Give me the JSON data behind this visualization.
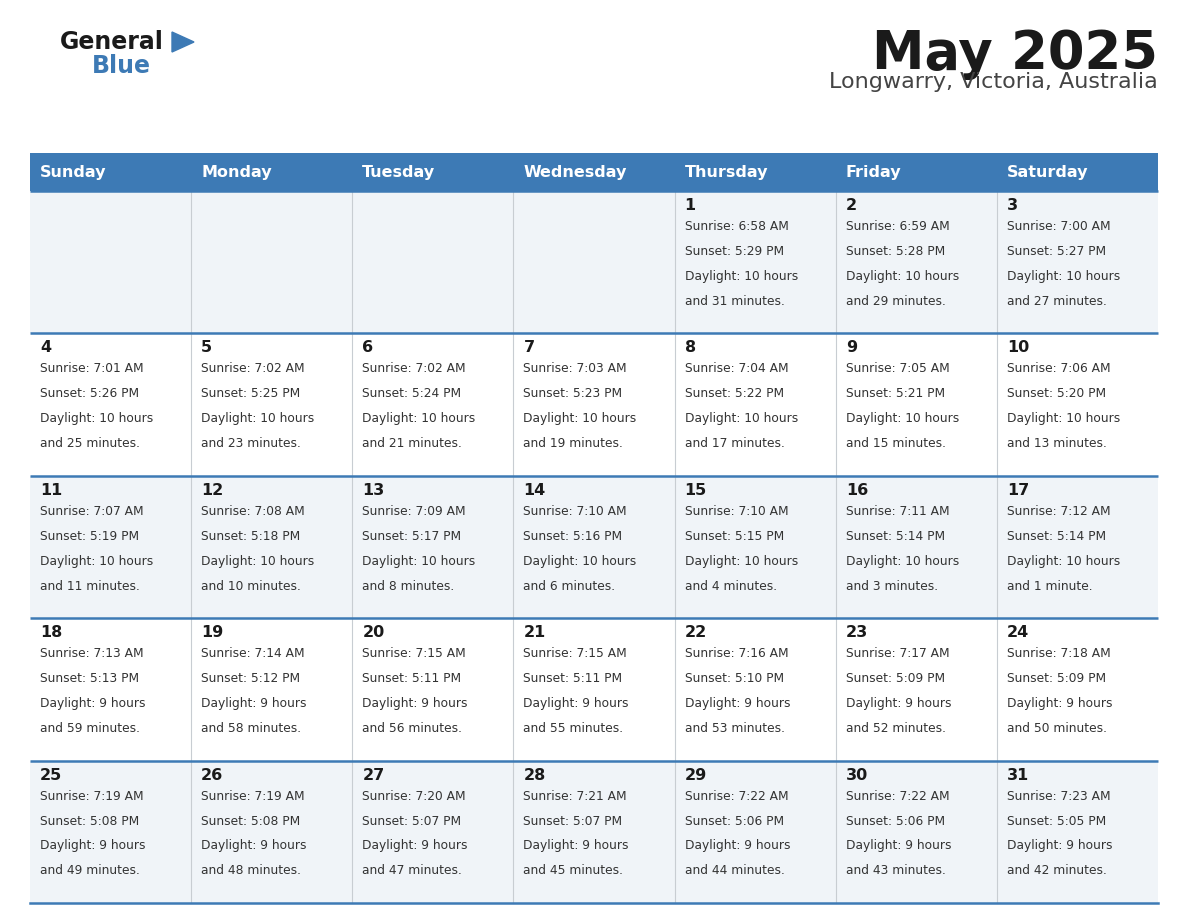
{
  "title": "May 2025",
  "subtitle": "Longwarry, Victoria, Australia",
  "header_bg": "#3d7ab5",
  "header_text": "#ffffff",
  "cell_bg_odd": "#f0f4f8",
  "cell_bg_even": "#ffffff",
  "day_names": [
    "Sunday",
    "Monday",
    "Tuesday",
    "Wednesday",
    "Thursday",
    "Friday",
    "Saturday"
  ],
  "logo_text1": "General",
  "logo_text2": "Blue",
  "days": [
    {
      "day": 1,
      "col": 4,
      "row": 0,
      "sunrise": "6:58 AM",
      "sunset": "5:29 PM",
      "daylight_line1": "Daylight: 10 hours",
      "daylight_line2": "and 31 minutes."
    },
    {
      "day": 2,
      "col": 5,
      "row": 0,
      "sunrise": "6:59 AM",
      "sunset": "5:28 PM",
      "daylight_line1": "Daylight: 10 hours",
      "daylight_line2": "and 29 minutes."
    },
    {
      "day": 3,
      "col": 6,
      "row": 0,
      "sunrise": "7:00 AM",
      "sunset": "5:27 PM",
      "daylight_line1": "Daylight: 10 hours",
      "daylight_line2": "and 27 minutes."
    },
    {
      "day": 4,
      "col": 0,
      "row": 1,
      "sunrise": "7:01 AM",
      "sunset": "5:26 PM",
      "daylight_line1": "Daylight: 10 hours",
      "daylight_line2": "and 25 minutes."
    },
    {
      "day": 5,
      "col": 1,
      "row": 1,
      "sunrise": "7:02 AM",
      "sunset": "5:25 PM",
      "daylight_line1": "Daylight: 10 hours",
      "daylight_line2": "and 23 minutes."
    },
    {
      "day": 6,
      "col": 2,
      "row": 1,
      "sunrise": "7:02 AM",
      "sunset": "5:24 PM",
      "daylight_line1": "Daylight: 10 hours",
      "daylight_line2": "and 21 minutes."
    },
    {
      "day": 7,
      "col": 3,
      "row": 1,
      "sunrise": "7:03 AM",
      "sunset": "5:23 PM",
      "daylight_line1": "Daylight: 10 hours",
      "daylight_line2": "and 19 minutes."
    },
    {
      "day": 8,
      "col": 4,
      "row": 1,
      "sunrise": "7:04 AM",
      "sunset": "5:22 PM",
      "daylight_line1": "Daylight: 10 hours",
      "daylight_line2": "and 17 minutes."
    },
    {
      "day": 9,
      "col": 5,
      "row": 1,
      "sunrise": "7:05 AM",
      "sunset": "5:21 PM",
      "daylight_line1": "Daylight: 10 hours",
      "daylight_line2": "and 15 minutes."
    },
    {
      "day": 10,
      "col": 6,
      "row": 1,
      "sunrise": "7:06 AM",
      "sunset": "5:20 PM",
      "daylight_line1": "Daylight: 10 hours",
      "daylight_line2": "and 13 minutes."
    },
    {
      "day": 11,
      "col": 0,
      "row": 2,
      "sunrise": "7:07 AM",
      "sunset": "5:19 PM",
      "daylight_line1": "Daylight: 10 hours",
      "daylight_line2": "and 11 minutes."
    },
    {
      "day": 12,
      "col": 1,
      "row": 2,
      "sunrise": "7:08 AM",
      "sunset": "5:18 PM",
      "daylight_line1": "Daylight: 10 hours",
      "daylight_line2": "and 10 minutes."
    },
    {
      "day": 13,
      "col": 2,
      "row": 2,
      "sunrise": "7:09 AM",
      "sunset": "5:17 PM",
      "daylight_line1": "Daylight: 10 hours",
      "daylight_line2": "and 8 minutes."
    },
    {
      "day": 14,
      "col": 3,
      "row": 2,
      "sunrise": "7:10 AM",
      "sunset": "5:16 PM",
      "daylight_line1": "Daylight: 10 hours",
      "daylight_line2": "and 6 minutes."
    },
    {
      "day": 15,
      "col": 4,
      "row": 2,
      "sunrise": "7:10 AM",
      "sunset": "5:15 PM",
      "daylight_line1": "Daylight: 10 hours",
      "daylight_line2": "and 4 minutes."
    },
    {
      "day": 16,
      "col": 5,
      "row": 2,
      "sunrise": "7:11 AM",
      "sunset": "5:14 PM",
      "daylight_line1": "Daylight: 10 hours",
      "daylight_line2": "and 3 minutes."
    },
    {
      "day": 17,
      "col": 6,
      "row": 2,
      "sunrise": "7:12 AM",
      "sunset": "5:14 PM",
      "daylight_line1": "Daylight: 10 hours",
      "daylight_line2": "and 1 minute."
    },
    {
      "day": 18,
      "col": 0,
      "row": 3,
      "sunrise": "7:13 AM",
      "sunset": "5:13 PM",
      "daylight_line1": "Daylight: 9 hours",
      "daylight_line2": "and 59 minutes."
    },
    {
      "day": 19,
      "col": 1,
      "row": 3,
      "sunrise": "7:14 AM",
      "sunset": "5:12 PM",
      "daylight_line1": "Daylight: 9 hours",
      "daylight_line2": "and 58 minutes."
    },
    {
      "day": 20,
      "col": 2,
      "row": 3,
      "sunrise": "7:15 AM",
      "sunset": "5:11 PM",
      "daylight_line1": "Daylight: 9 hours",
      "daylight_line2": "and 56 minutes."
    },
    {
      "day": 21,
      "col": 3,
      "row": 3,
      "sunrise": "7:15 AM",
      "sunset": "5:11 PM",
      "daylight_line1": "Daylight: 9 hours",
      "daylight_line2": "and 55 minutes."
    },
    {
      "day": 22,
      "col": 4,
      "row": 3,
      "sunrise": "7:16 AM",
      "sunset": "5:10 PM",
      "daylight_line1": "Daylight: 9 hours",
      "daylight_line2": "and 53 minutes."
    },
    {
      "day": 23,
      "col": 5,
      "row": 3,
      "sunrise": "7:17 AM",
      "sunset": "5:09 PM",
      "daylight_line1": "Daylight: 9 hours",
      "daylight_line2": "and 52 minutes."
    },
    {
      "day": 24,
      "col": 6,
      "row": 3,
      "sunrise": "7:18 AM",
      "sunset": "5:09 PM",
      "daylight_line1": "Daylight: 9 hours",
      "daylight_line2": "and 50 minutes."
    },
    {
      "day": 25,
      "col": 0,
      "row": 4,
      "sunrise": "7:19 AM",
      "sunset": "5:08 PM",
      "daylight_line1": "Daylight: 9 hours",
      "daylight_line2": "and 49 minutes."
    },
    {
      "day": 26,
      "col": 1,
      "row": 4,
      "sunrise": "7:19 AM",
      "sunset": "5:08 PM",
      "daylight_line1": "Daylight: 9 hours",
      "daylight_line2": "and 48 minutes."
    },
    {
      "day": 27,
      "col": 2,
      "row": 4,
      "sunrise": "7:20 AM",
      "sunset": "5:07 PM",
      "daylight_line1": "Daylight: 9 hours",
      "daylight_line2": "and 47 minutes."
    },
    {
      "day": 28,
      "col": 3,
      "row": 4,
      "sunrise": "7:21 AM",
      "sunset": "5:07 PM",
      "daylight_line1": "Daylight: 9 hours",
      "daylight_line2": "and 45 minutes."
    },
    {
      "day": 29,
      "col": 4,
      "row": 4,
      "sunrise": "7:22 AM",
      "sunset": "5:06 PM",
      "daylight_line1": "Daylight: 9 hours",
      "daylight_line2": "and 44 minutes."
    },
    {
      "day": 30,
      "col": 5,
      "row": 4,
      "sunrise": "7:22 AM",
      "sunset": "5:06 PM",
      "daylight_line1": "Daylight: 9 hours",
      "daylight_line2": "and 43 minutes."
    },
    {
      "day": 31,
      "col": 6,
      "row": 4,
      "sunrise": "7:23 AM",
      "sunset": "5:05 PM",
      "daylight_line1": "Daylight: 9 hours",
      "daylight_line2": "and 42 minutes."
    }
  ]
}
